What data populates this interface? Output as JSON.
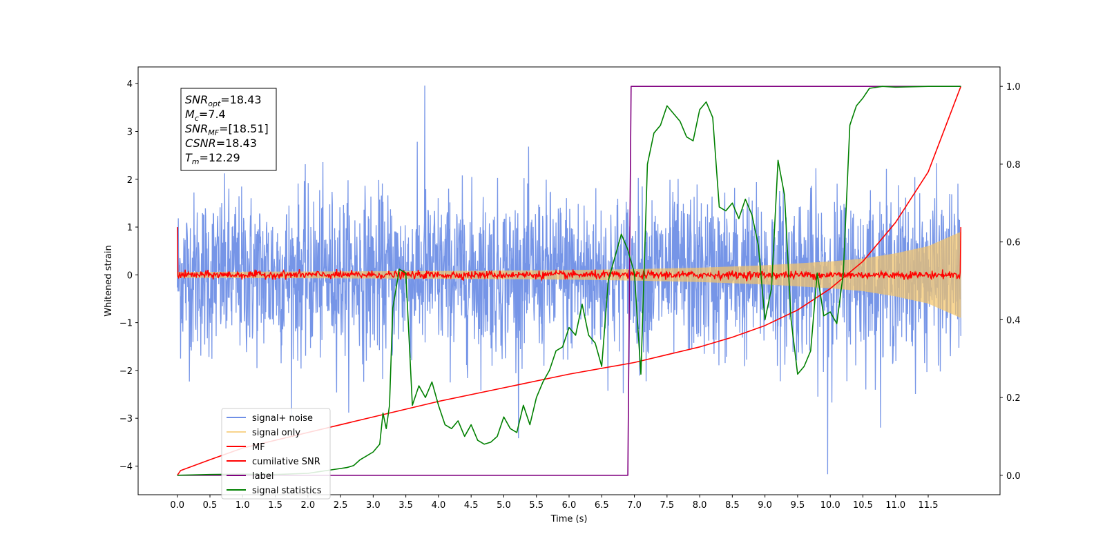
{
  "chart_data": {
    "type": "line",
    "xlabel": "Time (s)",
    "ylabel": "Whitened strain",
    "xlim": [
      -0.6,
      12.6
    ],
    "ylim": [
      -4.6,
      4.35
    ],
    "ylim_right": [
      -0.05,
      1.05
    ],
    "x_ticks": [
      "0.0",
      "0.5",
      "1.0",
      "1.5",
      "2.0",
      "2.5",
      "3.0",
      "3.5",
      "4.0",
      "4.5",
      "5.0",
      "5.5",
      "6.0",
      "6.5",
      "7.0",
      "7.5",
      "8.0",
      "8.5",
      "9.0",
      "9.5",
      "10.0",
      "10.5",
      "11.0",
      "11.5"
    ],
    "y_ticks_left": [
      "4",
      "3",
      "2",
      "1",
      "0",
      "−1",
      "−2",
      "−3",
      "−4"
    ],
    "y_ticks_right": [
      "1.0",
      "0.8",
      "0.6",
      "0.4",
      "0.2",
      "0.0"
    ],
    "grid": false,
    "legend_position": "lower-left",
    "annotation": [
      {
        "var": "SNR",
        "sub": "opt",
        "value": "18.43"
      },
      {
        "var": "M",
        "sub": "c",
        "value": "7.4"
      },
      {
        "var": "SNR",
        "sub": "MF",
        "value": "[18.51]"
      },
      {
        "var": "CSNR",
        "sub": "",
        "value": "18.43"
      },
      {
        "var": "T",
        "sub": "m",
        "value": "12.29"
      }
    ],
    "series": [
      {
        "name": "signal+ noise",
        "axis": "left",
        "color": "#6f8fe6",
        "x_range": [
          0,
          12.0
        ],
        "noise_sigma": 0.85,
        "max": 3.96,
        "min": -4.17
      },
      {
        "name": "signal only",
        "axis": "left",
        "color": "#f5c566",
        "x_range": [
          0,
          12.0
        ],
        "envelope": {
          "x": [
            0,
            2,
            4,
            6,
            7,
            8,
            9,
            10,
            10.5,
            11,
            11.5,
            12.0
          ],
          "amp": [
            0.06,
            0.07,
            0.08,
            0.1,
            0.12,
            0.15,
            0.2,
            0.28,
            0.34,
            0.45,
            0.6,
            0.9
          ]
        }
      },
      {
        "name": "MF",
        "axis": "left",
        "color": "#ff0000",
        "x_range": [
          0,
          12.0
        ],
        "start_value": 1.0,
        "end_value": 1.0,
        "noise_sigma": 0.04
      },
      {
        "name": "cumilative SNR",
        "axis": "right",
        "color": "#ff0000",
        "x": [
          0,
          0.05,
          0.5,
          1,
          2,
          3,
          4,
          5,
          6,
          7,
          7.5,
          8,
          8.5,
          9,
          9.5,
          10,
          10.5,
          11,
          11.5,
          12.0
        ],
        "y": [
          0.0,
          0.012,
          0.04,
          0.07,
          0.11,
          0.15,
          0.19,
          0.225,
          0.26,
          0.29,
          0.31,
          0.33,
          0.355,
          0.385,
          0.425,
          0.48,
          0.55,
          0.65,
          0.78,
          1.0
        ]
      },
      {
        "name": "label",
        "axis": "right",
        "color": "#800080",
        "x": [
          0,
          6.9,
          6.95,
          12.0
        ],
        "y": [
          0.0,
          0.0,
          1.0,
          1.0
        ]
      },
      {
        "name": "signal statistics",
        "axis": "right",
        "color": "#008000",
        "x": [
          0,
          0.5,
          1.0,
          1.5,
          2.0,
          2.2,
          2.4,
          2.6,
          2.7,
          2.8,
          2.9,
          3.0,
          3.1,
          3.15,
          3.2,
          3.25,
          3.3,
          3.4,
          3.5,
          3.6,
          3.7,
          3.8,
          3.9,
          4.0,
          4.1,
          4.2,
          4.3,
          4.4,
          4.5,
          4.6,
          4.7,
          4.8,
          4.9,
          5.0,
          5.1,
          5.2,
          5.3,
          5.4,
          5.5,
          5.6,
          5.7,
          5.8,
          5.9,
          6.0,
          6.1,
          6.2,
          6.3,
          6.4,
          6.5,
          6.6,
          6.7,
          6.8,
          6.9,
          7.0,
          7.1,
          7.2,
          7.3,
          7.4,
          7.5,
          7.6,
          7.7,
          7.8,
          7.9,
          8.0,
          8.1,
          8.2,
          8.3,
          8.4,
          8.5,
          8.6,
          8.7,
          8.8,
          8.9,
          9.0,
          9.1,
          9.2,
          9.3,
          9.4,
          9.5,
          9.6,
          9.7,
          9.8,
          9.9,
          10.0,
          10.1,
          10.2,
          10.3,
          10.4,
          10.5,
          10.6,
          10.8,
          11.0,
          11.5,
          12.0
        ],
        "y": [
          0.0,
          0.002,
          0.003,
          0.002,
          0.005,
          0.01,
          0.015,
          0.02,
          0.025,
          0.04,
          0.05,
          0.06,
          0.08,
          0.16,
          0.12,
          0.18,
          0.43,
          0.53,
          0.52,
          0.18,
          0.23,
          0.2,
          0.24,
          0.18,
          0.13,
          0.12,
          0.14,
          0.1,
          0.13,
          0.09,
          0.08,
          0.085,
          0.1,
          0.15,
          0.12,
          0.11,
          0.18,
          0.13,
          0.2,
          0.24,
          0.27,
          0.32,
          0.33,
          0.38,
          0.36,
          0.44,
          0.36,
          0.34,
          0.28,
          0.5,
          0.56,
          0.62,
          0.58,
          0.52,
          0.26,
          0.8,
          0.88,
          0.9,
          0.95,
          0.93,
          0.91,
          0.87,
          0.86,
          0.94,
          0.96,
          0.92,
          0.69,
          0.68,
          0.7,
          0.66,
          0.71,
          0.67,
          0.59,
          0.4,
          0.48,
          0.81,
          0.72,
          0.4,
          0.26,
          0.28,
          0.32,
          0.52,
          0.41,
          0.42,
          0.39,
          0.52,
          0.9,
          0.95,
          0.97,
          0.995,
          1.0,
          0.998,
          1.0,
          1.0
        ]
      }
    ]
  }
}
